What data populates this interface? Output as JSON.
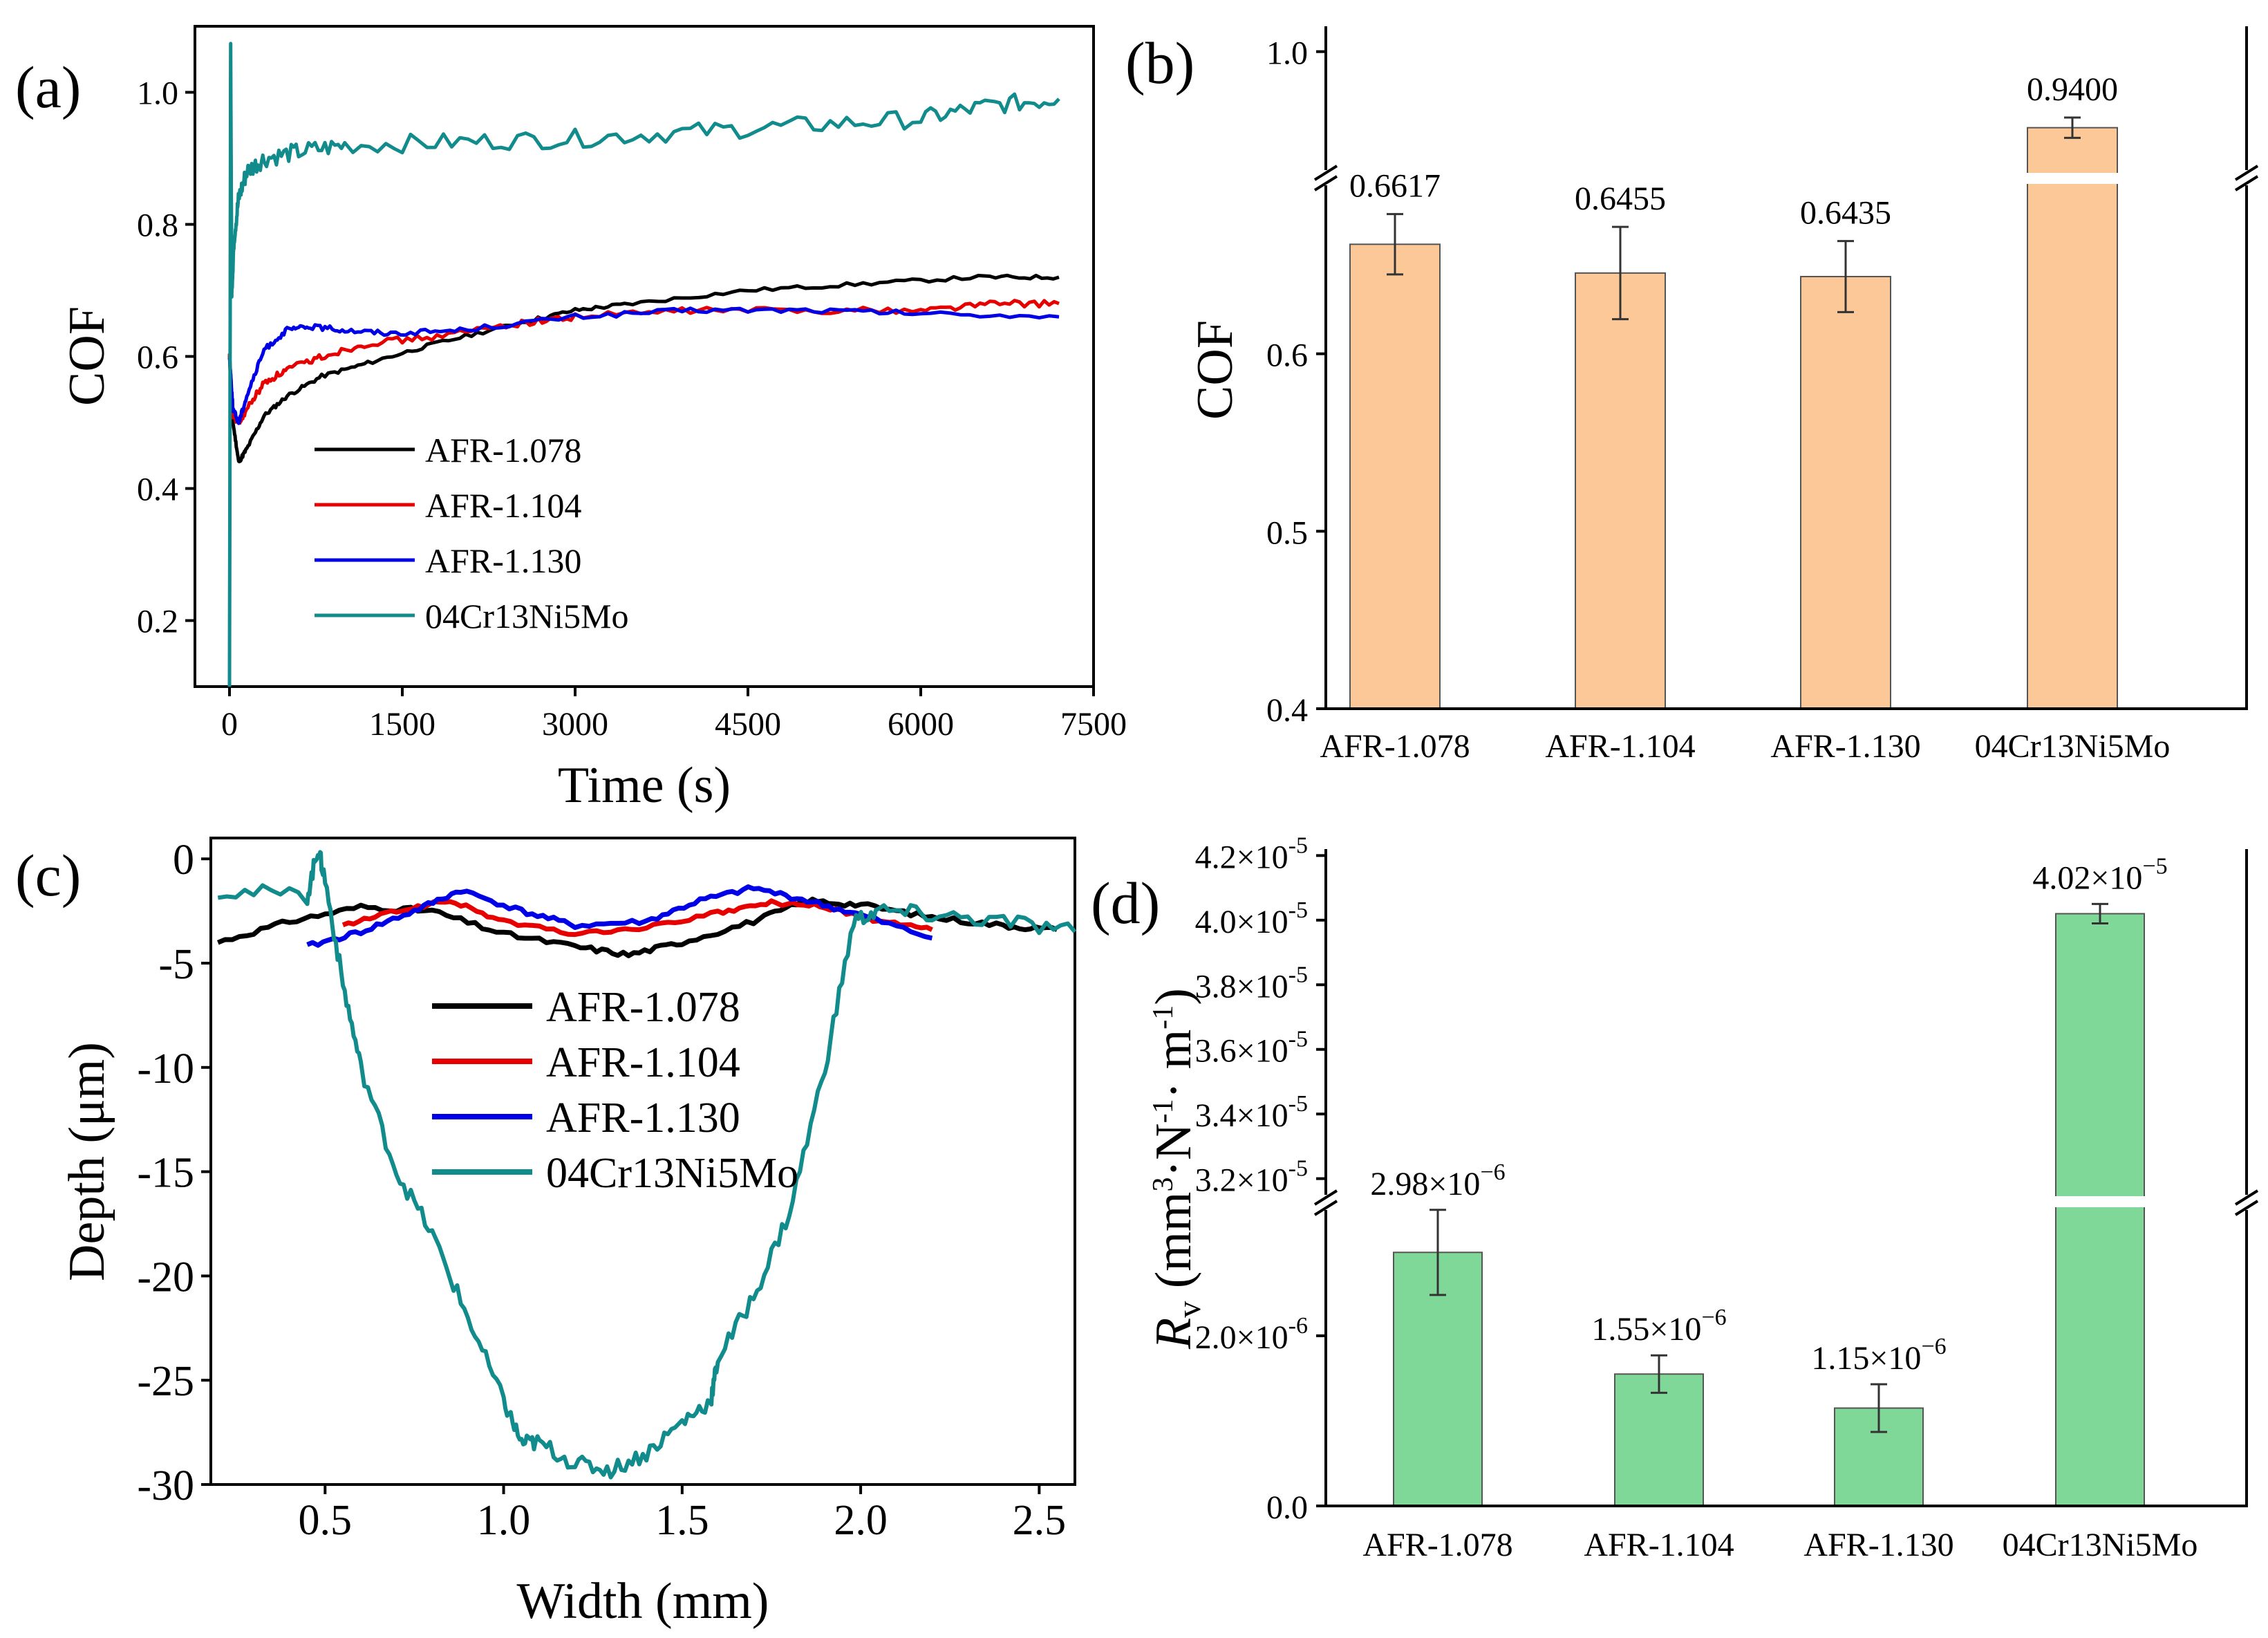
{
  "chart_data": [
    {
      "panel": "(a)",
      "type": "line",
      "xlabel": "Time (s)",
      "ylabel": "COF",
      "xlim": [
        -300,
        7500
      ],
      "ylim": [
        0.1,
        1.1
      ],
      "xticks": [
        0,
        1500,
        3000,
        4500,
        6000,
        7500
      ],
      "yticks": [
        0.2,
        0.4,
        0.6,
        0.8,
        1.0
      ],
      "xtick_labels": [
        "0",
        "1500",
        "3000",
        "4500",
        "6000",
        "7500"
      ],
      "ytick_labels": [
        "0.2",
        "0.4",
        "0.6",
        "0.8",
        "1.0"
      ],
      "legend_position": "lower-left",
      "series": [
        {
          "name": "AFR-1.078",
          "color": "#000000",
          "x": [
            0,
            30,
            80,
            150,
            300,
            500,
            800,
            1200,
            1800,
            2500,
            3000,
            3500,
            4500,
            5500,
            6500,
            7200
          ],
          "y": [
            0.6,
            0.5,
            0.44,
            0.46,
            0.51,
            0.54,
            0.57,
            0.59,
            0.62,
            0.65,
            0.67,
            0.68,
            0.7,
            0.71,
            0.72,
            0.72
          ]
        },
        {
          "name": "AFR-1.104",
          "color": "#e60000",
          "x": [
            0,
            30,
            80,
            150,
            300,
            500,
            800,
            1200,
            1800,
            2500,
            3000,
            4000,
            5000,
            6000,
            6600,
            7200
          ],
          "y": [
            0.6,
            0.51,
            0.5,
            0.52,
            0.56,
            0.58,
            0.6,
            0.62,
            0.63,
            0.65,
            0.66,
            0.67,
            0.67,
            0.67,
            0.68,
            0.68
          ]
        },
        {
          "name": "AFR-1.130",
          "color": "#0000e6",
          "x": [
            0,
            30,
            80,
            150,
            300,
            500,
            700,
            1000,
            1400,
            2000,
            3000,
            4000,
            5000,
            6000,
            7200
          ],
          "y": [
            0.6,
            0.52,
            0.5,
            0.54,
            0.61,
            0.64,
            0.645,
            0.64,
            0.635,
            0.64,
            0.66,
            0.67,
            0.67,
            0.665,
            0.66
          ]
        },
        {
          "name": "04Cr13Ni5Mo",
          "color": "#118b8b",
          "x": [
            0,
            10,
            20,
            40,
            80,
            150,
            300,
            600,
            1000,
            2000,
            3000,
            4000,
            5000,
            6000,
            6600,
            7200
          ],
          "y": [
            0.1,
            1.06,
            0.7,
            0.78,
            0.84,
            0.88,
            0.9,
            0.91,
            0.92,
            0.925,
            0.93,
            0.94,
            0.95,
            0.96,
            0.98,
            0.99
          ]
        }
      ]
    },
    {
      "panel": "(b)",
      "type": "bar",
      "ylabel": "COF",
      "categories": [
        "AFR-1.078",
        "AFR-1.104",
        "AFR-1.130",
        "04Cr13Ni5Mo"
      ],
      "values": [
        0.6617,
        0.6455,
        0.6435,
        0.94
      ],
      "value_labels": [
        "0.6617",
        "0.6455",
        "0.6435",
        "0.9400"
      ],
      "errors": [
        0.017,
        0.026,
        0.02,
        0.008
      ],
      "ylim_lower": [
        0.4,
        0.7
      ],
      "ylim_upper": [
        0.9,
        1.02
      ],
      "axis_break": true,
      "yticks": [
        0.4,
        0.5,
        0.6,
        1.0
      ],
      "ytick_labels": [
        "0.4",
        "0.5",
        "0.6",
        "1.0"
      ],
      "bar_color": "#fcc897"
    },
    {
      "panel": "(c)",
      "type": "line",
      "xlabel": "Width (mm)",
      "ylabel": "Depth (μm)",
      "xlim": [
        0.18,
        2.6
      ],
      "ylim": [
        -30,
        1
      ],
      "xticks": [
        0.5,
        1.0,
        1.5,
        2.0,
        2.5
      ],
      "yticks": [
        0,
        -5,
        -10,
        -15,
        -20,
        -25,
        -30
      ],
      "xtick_labels": [
        "0.5",
        "1.0",
        "1.5",
        "2.0",
        "2.5"
      ],
      "ytick_labels": [
        "0",
        "-5",
        "-10",
        "-15",
        "-20",
        "-25",
        "-30"
      ],
      "legend_position": "center",
      "series": [
        {
          "name": "AFR-1.078",
          "color": "#000000",
          "x": [
            0.2,
            0.4,
            0.6,
            0.8,
            1.0,
            1.2,
            1.35,
            1.5,
            1.7,
            1.85,
            2.0,
            2.2,
            2.4,
            2.55
          ],
          "y": [
            -4.0,
            -3.0,
            -2.3,
            -2.5,
            -3.6,
            -4.2,
            -4.6,
            -4.0,
            -3.0,
            -2.0,
            -2.2,
            -2.8,
            -3.2,
            -3.4
          ]
        },
        {
          "name": "AFR-1.104",
          "color": "#e60000",
          "x": [
            0.55,
            0.7,
            0.85,
            1.0,
            1.2,
            1.4,
            1.6,
            1.75,
            1.9,
            2.05,
            2.2
          ],
          "y": [
            -3.2,
            -2.5,
            -2.0,
            -3.0,
            -3.6,
            -3.3,
            -2.6,
            -2.1,
            -2.3,
            -3.0,
            -3.4
          ]
        },
        {
          "name": "AFR-1.130",
          "color": "#0000e6",
          "x": [
            0.45,
            0.6,
            0.75,
            0.88,
            1.05,
            1.2,
            1.4,
            1.55,
            1.7,
            1.85,
            2.0,
            2.2
          ],
          "y": [
            -4.2,
            -3.5,
            -2.5,
            -1.5,
            -2.5,
            -3.2,
            -3.0,
            -2.0,
            -1.4,
            -2.0,
            -2.7,
            -3.8
          ]
        },
        {
          "name": "04Cr13Ni5Mo",
          "color": "#118b8b",
          "x": [
            0.2,
            0.45,
            0.48,
            0.5,
            0.55,
            0.6,
            0.7,
            0.8,
            0.9,
            1.0,
            1.05,
            1.1,
            1.2,
            1.3,
            1.4,
            1.5,
            1.58,
            1.6,
            1.7,
            1.8,
            1.9,
            1.98,
            2.05,
            2.2,
            2.4,
            2.6
          ],
          "y": [
            -1.5,
            -1.8,
            0.5,
            -1.0,
            -6.0,
            -10.0,
            -15.0,
            -18.0,
            -22.0,
            -26.0,
            -28.0,
            -28.0,
            -29.0,
            -29.3,
            -28.5,
            -27.0,
            -26.0,
            -24.0,
            -21.0,
            -17.0,
            -10.0,
            -3.0,
            -2.5,
            -2.7,
            -3.0,
            -3.5
          ]
        }
      ]
    },
    {
      "panel": "(d)",
      "type": "bar",
      "ylabel": "Rv (mm³·N⁻¹·m⁻¹)",
      "categories": [
        "AFR-1.078",
        "AFR-1.104",
        "AFR-1.130",
        "04Cr13Ni5Mo"
      ],
      "values": [
        2.98e-06,
        1.55e-06,
        1.15e-06,
        4.02e-05
      ],
      "errors": [
        5e-07,
        2.2e-07,
        2.8e-07,
        3e-07
      ],
      "axis_break": true,
      "ylim_lower": [
        0,
        3.6e-06
      ],
      "ylim_upper": [
        3.12e-05,
        4.22e-05
      ],
      "bar_color": "#7fd898",
      "value_labels": [
        {
          "mantissa": "2.98×10",
          "exp": "−6"
        },
        {
          "mantissa": "1.55×10",
          "exp": "−6"
        },
        {
          "mantissa": "1.15×10",
          "exp": "−6"
        },
        {
          "mantissa": "4.02×10",
          "exp": "−5"
        }
      ],
      "yticks": [
        {
          "value": 0,
          "mantissa": "0.0",
          "exp": ""
        },
        {
          "value": 2e-06,
          "mantissa": "2.0×10",
          "exp": "-6"
        },
        {
          "value": 3.2e-05,
          "mantissa": "3.2×10",
          "exp": "-5"
        },
        {
          "value": 3.4e-05,
          "mantissa": "3.4×10",
          "exp": "-5"
        },
        {
          "value": 3.6e-05,
          "mantissa": "3.6×10",
          "exp": "-5"
        },
        {
          "value": 3.8e-05,
          "mantissa": "3.8×10",
          "exp": "-5"
        },
        {
          "value": 4e-05,
          "mantissa": "4.0×10",
          "exp": "-5"
        },
        {
          "value": 4.2e-05,
          "mantissa": "4.2×10",
          "exp": "-5"
        }
      ]
    }
  ]
}
